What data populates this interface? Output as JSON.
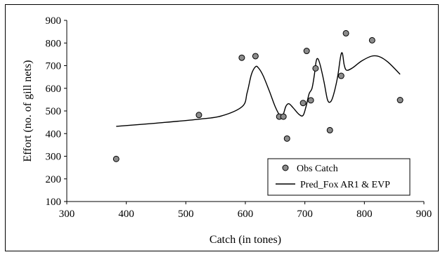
{
  "chart_data": {
    "type": "scatter",
    "title": "",
    "xlabel": "Catch (in tones)",
    "ylabel": "Effort (no. of gill nets)",
    "xlim": [
      300,
      900
    ],
    "ylim": [
      100,
      900
    ],
    "x_ticks": [
      "300",
      "400",
      "500",
      "600",
      "700",
      "800",
      "900"
    ],
    "y_ticks": [
      "100",
      "200",
      "300",
      "400",
      "500",
      "600",
      "700",
      "800",
      "900"
    ],
    "grid": false,
    "legend_position": "bottom-right",
    "series": [
      {
        "name": "Obs Catch",
        "kind": "points",
        "marker_color": "#8c8c8c",
        "points": [
          [
            383,
            288
          ],
          [
            522,
            482
          ],
          [
            594,
            735
          ],
          [
            617,
            742
          ],
          [
            657,
            475
          ],
          [
            664,
            475
          ],
          [
            670,
            378
          ],
          [
            697,
            535
          ],
          [
            703,
            765
          ],
          [
            710,
            547
          ],
          [
            718,
            688
          ],
          [
            742,
            415
          ],
          [
            761,
            655
          ],
          [
            769,
            843
          ],
          [
            813,
            812
          ],
          [
            860,
            548
          ]
        ]
      },
      {
        "name": "Pred_Fox AR1 & EVP",
        "kind": "line",
        "line_color": "#000000",
        "points": [
          [
            383,
            432
          ],
          [
            450,
            446
          ],
          [
            520,
            463
          ],
          [
            560,
            478
          ],
          [
            595,
            520
          ],
          [
            603,
            580
          ],
          [
            610,
            660
          ],
          [
            617,
            695
          ],
          [
            622,
            690
          ],
          [
            630,
            655
          ],
          [
            640,
            590
          ],
          [
            650,
            520
          ],
          [
            658,
            480
          ],
          [
            663,
            480
          ],
          [
            668,
            520
          ],
          [
            673,
            532
          ],
          [
            680,
            515
          ],
          [
            690,
            485
          ],
          [
            697,
            480
          ],
          [
            702,
            520
          ],
          [
            707,
            575
          ],
          [
            712,
            600
          ],
          [
            716,
            660
          ],
          [
            719,
            720
          ],
          [
            722,
            730
          ],
          [
            726,
            700
          ],
          [
            732,
            630
          ],
          [
            738,
            550
          ],
          [
            743,
            540
          ],
          [
            748,
            570
          ],
          [
            755,
            650
          ],
          [
            760,
            740
          ],
          [
            763,
            755
          ],
          [
            766,
            705
          ],
          [
            770,
            680
          ],
          [
            780,
            690
          ],
          [
            795,
            720
          ],
          [
            812,
            742
          ],
          [
            825,
            740
          ],
          [
            840,
            715
          ],
          [
            860,
            662
          ]
        ]
      }
    ]
  }
}
